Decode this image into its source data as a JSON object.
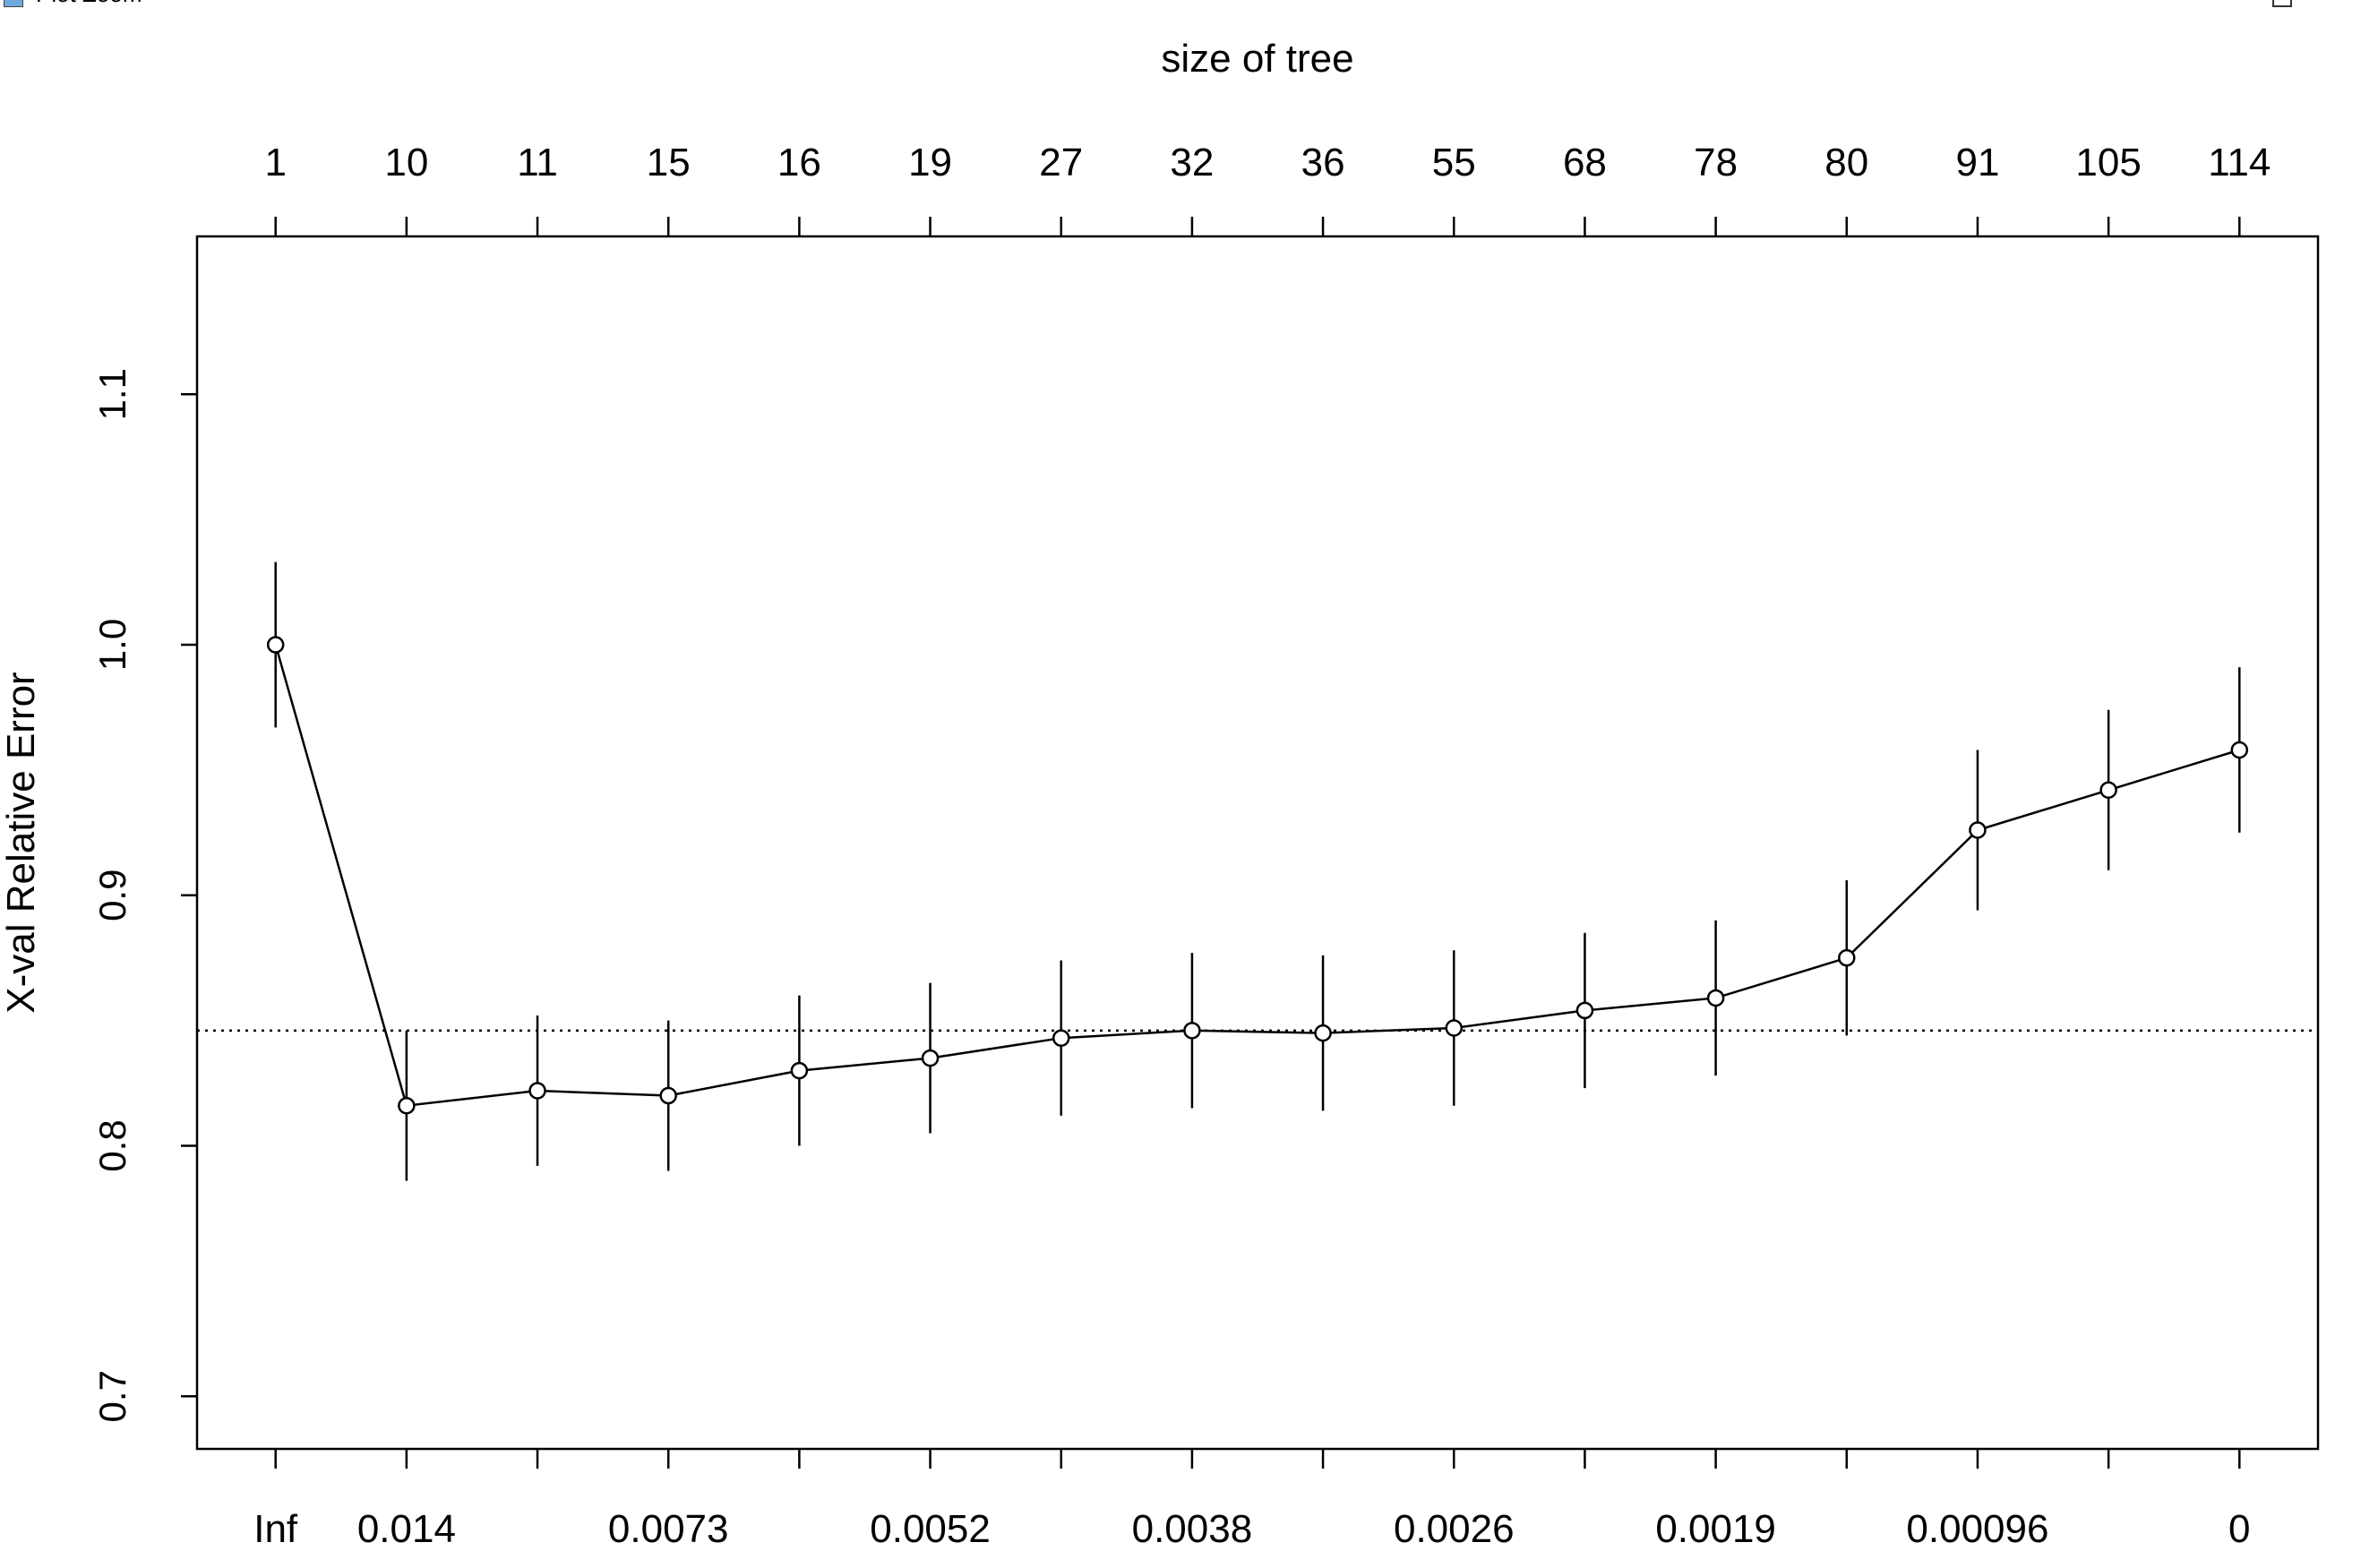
{
  "window": {
    "title": "Plot Zoom"
  },
  "chart_data": {
    "type": "line",
    "title": "",
    "xlabel": "",
    "ylabel": "X-val Relative Error",
    "top_axis_label": "size of tree",
    "top_tick_labels": [
      "1",
      "10",
      "11",
      "15",
      "16",
      "19",
      "27",
      "32",
      "36",
      "55",
      "68",
      "78",
      "80",
      "91",
      "105",
      "114"
    ],
    "bottom_tick_labels": [
      "Inf",
      "0.014",
      "",
      "0.0073",
      "",
      "0.0052",
      "",
      "0.0038",
      "",
      "0.0026",
      "",
      "0.0019",
      "",
      "0.00096",
      "",
      "0"
    ],
    "y_ticks": [
      0.7,
      0.8,
      0.9,
      1.0,
      1.1
    ],
    "y_tick_labels": [
      "0.7",
      "0.8",
      "0.9",
      "1.0",
      "1.1"
    ],
    "ylim": [
      0.679,
      1.163
    ],
    "xlim": [
      0.4,
      16.6
    ],
    "reference_line": 0.846,
    "grid": false,
    "series": [
      {
        "x": [
          1,
          2,
          3,
          4,
          5,
          6,
          7,
          8,
          9,
          10,
          11,
          12,
          13,
          14,
          15,
          16
        ],
        "values": [
          1.0,
          0.816,
          0.822,
          0.82,
          0.83,
          0.835,
          0.843,
          0.846,
          0.845,
          0.847,
          0.854,
          0.859,
          0.875,
          0.926,
          0.942,
          0.958
        ],
        "se": [
          0.033,
          0.03,
          0.03,
          0.03,
          0.03,
          0.03,
          0.031,
          0.031,
          0.031,
          0.031,
          0.031,
          0.031,
          0.031,
          0.032,
          0.032,
          0.033
        ]
      }
    ]
  }
}
